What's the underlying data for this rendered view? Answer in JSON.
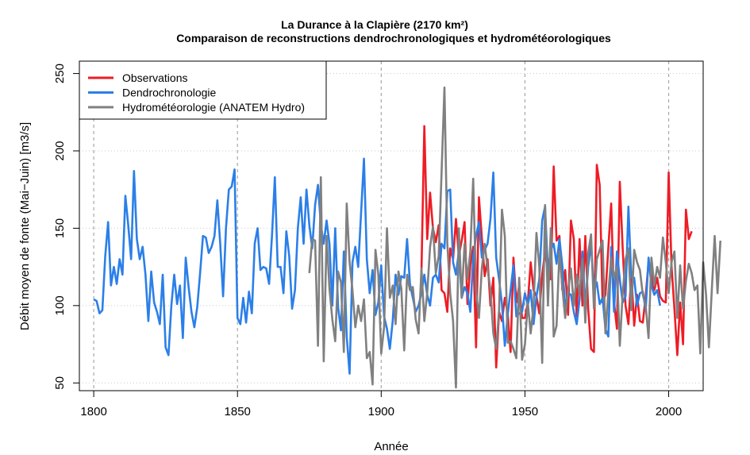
{
  "chart_data": {
    "type": "line",
    "title": "La Durance à la Clapière (2170 km²)",
    "subtitle": "Comparaison de reconstructions dendrochronologiques et hydrométéorologiques",
    "xlabel": "Année",
    "ylabel": "Débit moyen de fonte (Mai−Juin) [m3/s]",
    "xlim": [
      1795,
      2012
    ],
    "ylim": [
      45,
      258
    ],
    "x_ticks": [
      1800,
      1850,
      1900,
      1950,
      2000
    ],
    "y_ticks": [
      50,
      100,
      150,
      200,
      250
    ],
    "grid": "dotted",
    "legend_position": "top-left",
    "series": [
      {
        "name": "Observations",
        "color": "#ee1c25",
        "x_start": 1914,
        "values": [
          122,
          216,
          143,
          173,
          150,
          141,
          152,
          110,
          108,
          96,
          137,
          130,
          156,
          132,
          142,
          154,
          101,
          126,
          138,
          73,
          170,
          144,
          119,
          130,
          100,
          118,
          60,
          96,
          90,
          105,
          95,
          70,
          131,
          102,
          113,
          92,
          92,
          102,
          128,
          110,
          106,
          95,
          120,
          135,
          121,
          117,
          190,
          142,
          145,
          110,
          123,
          94,
          155,
          143,
          93,
          143,
          100,
          145,
          98,
          72,
          70,
          191,
          178,
          102,
          107,
          137,
          166,
          102,
          85,
          180,
          137,
          100,
          88,
          121,
          87,
          107,
          90,
          89,
          106,
          128,
          120,
          110,
          118,
          106,
          103,
          102,
          186,
          125,
          98,
          68,
          102,
          75,
          162,
          143,
          148
        ]
      },
      {
        "name": "Dendrochronologie",
        "color": "#2b7fe8",
        "x_start": 1800,
        "values": [
          104,
          103,
          95,
          97,
          132,
          154,
          113,
          125,
          114,
          130,
          120,
          171,
          152,
          130,
          187,
          143,
          130,
          138,
          120,
          90,
          122,
          102,
          96,
          88,
          120,
          73,
          68,
          100,
          120,
          101,
          113,
          79,
          131,
          112,
          96,
          86,
          99,
          121,
          145,
          144,
          134,
          138,
          145,
          168,
          140,
          106,
          150,
          175,
          177,
          188,
          92,
          88,
          105,
          89,
          109,
          95,
          140,
          150,
          123,
          125,
          124,
          114,
          145,
          183,
          125,
          125,
          108,
          148,
          132,
          98,
          110,
          150,
          170,
          140,
          175,
          152,
          137,
          165,
          178,
          152,
          140,
          155,
          140,
          100,
          150,
          99,
          84,
          135,
          80,
          56,
          128,
          138,
          125,
          160,
          195,
          130,
          108,
          123,
          94,
          102,
          126,
          93,
          85,
          72,
          90,
          120,
          107,
          119,
          118,
          143,
          114,
          105,
          96,
          100,
          108,
          120,
          107,
          100,
          118,
          120,
          115,
          140,
          137,
          174,
          175,
          128,
          120,
          135,
          105,
          112,
          108,
          96,
          131,
          145,
          154,
          131,
          136,
          140,
          156,
          186,
          131,
          117,
          101,
          74,
          94,
          110,
          126,
          93,
          95,
          96,
          108,
          100,
          110,
          88,
          106,
          117,
          155,
          164,
          122,
          136,
          140,
          127,
          143,
          126,
          99,
          108,
          107,
          96,
          88,
          104,
          135,
          99,
          125,
          140,
          110,
          115,
          101,
          105,
          85,
          80,
          138,
          96,
          135,
          117,
          102,
          106,
          164,
          118,
          118,
          100,
          108,
          109,
          97,
          131,
          113,
          107,
          110,
          100
        ]
      },
      {
        "name": "Hydrométéorologie (ANATEM Hydro)",
        "color": "#808080",
        "x_start": 1875,
        "values": [
          121,
          143,
          142,
          74,
          183,
          64,
          145,
          111,
          91,
          77,
          122,
          115,
          70,
          166,
          128,
          110,
          86,
          100,
          90,
          104,
          66,
          70,
          49,
          136,
          120,
          69,
          86,
          150,
          105,
          113,
          88,
          122,
          111,
          71,
          120,
          110,
          112,
          91,
          82,
          124,
          90,
          108,
          138,
          151,
          121,
          132,
          186,
          241,
          140,
          108,
          90,
          47,
          150,
          105,
          140,
          117,
          135,
          182,
          110,
          92,
          124,
          140,
          124,
          110,
          82,
          72,
          97,
          162,
          145,
          76,
          77,
          72,
          66,
          118,
          65,
          75,
          102,
          82,
          100,
          147,
          125,
          63,
          165,
          100,
          150,
          80,
          87,
          135,
          112,
          92,
          110,
          124,
          100,
          120,
          107,
          130,
          89,
          134,
          146,
          98,
          130,
          136,
          142,
          82,
          108,
          131,
          118,
          125,
          74,
          108,
          130,
          137,
          97,
          136,
          128,
          123,
          107,
          100,
          79,
          131,
          113,
          125,
          118,
          144,
          128,
          108,
          128,
          135,
          92,
          126,
          98,
          116,
          127,
          121,
          110,
          113,
          69,
          128,
          107,
          73,
          110,
          145,
          108,
          142
        ]
      }
    ]
  }
}
